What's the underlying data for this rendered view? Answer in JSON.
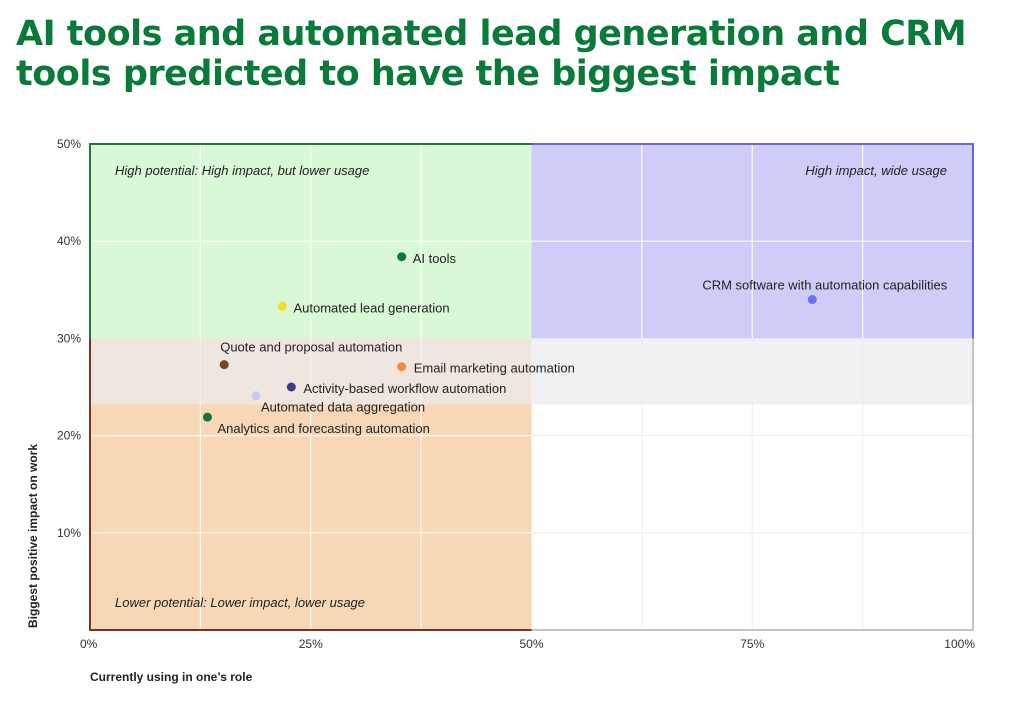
{
  "chart_data": {
    "type": "scatter",
    "title": "AI tools and automated lead generation and CRM tools predicted to have the biggest impact",
    "xlabel": "Currently using in one’s role",
    "ylabel": "Biggest positive impact on work",
    "xlim": [
      0,
      100
    ],
    "ylim": [
      0,
      50
    ],
    "x_ticks": [
      {
        "value": 0,
        "label": "0%"
      },
      {
        "value": 25,
        "label": "25%"
      },
      {
        "value": 50,
        "label": "50%"
      },
      {
        "value": 75,
        "label": "75%"
      },
      {
        "value": 100,
        "label": "100%"
      }
    ],
    "y_ticks": [
      {
        "value": 10,
        "label": "10%"
      },
      {
        "value": 20,
        "label": "20%"
      },
      {
        "value": 30,
        "label": "30%"
      },
      {
        "value": 40,
        "label": "40%"
      },
      {
        "value": 50,
        "label": "50%"
      }
    ],
    "quadrants": [
      {
        "name": "high-potential",
        "label": "High potential: High impact, but lower usage",
        "x": [
          0,
          50
        ],
        "y": [
          30,
          50
        ],
        "fill": "#d9f8d6",
        "border": "#1f7a3a"
      },
      {
        "name": "high-impact-wide-usage",
        "label": "High impact, wide usage",
        "x": [
          50,
          100
        ],
        "y": [
          30,
          50
        ],
        "fill": "#cdcdf8",
        "border": "#6666dd"
      },
      {
        "name": "lower-potential",
        "label": "Lower potential: Lower impact, lower usage",
        "x": [
          0,
          50
        ],
        "y": [
          0,
          30
        ],
        "fill": "#f8d7b6",
        "border": "#6e3b1f"
      }
    ],
    "middle_band": {
      "y": [
        23.2,
        30
      ],
      "fill": "#ececef",
      "opacity": 0.72
    },
    "points": [
      {
        "name": "ai-tools",
        "label": "AI tools",
        "x": 35.3,
        "y": 38.4,
        "color": "#0a7a3b"
      },
      {
        "name": "automated-lead-generation",
        "label": "Automated lead generation",
        "x": 21.8,
        "y": 33.3,
        "color": "#f2dd2a"
      },
      {
        "name": "crm-software",
        "label": "CRM software with automation capabilities",
        "x": 81.8,
        "y": 34.0,
        "color": "#6f6ff0"
      },
      {
        "name": "quote-and-proposal-automation",
        "label": "Quote and proposal automation",
        "x": 15.2,
        "y": 27.3,
        "color": "#7a4522"
      },
      {
        "name": "email-marketing-automation",
        "label": "Email marketing automation",
        "x": 35.3,
        "y": 27.1,
        "color": "#f78a3a"
      },
      {
        "name": "activity-based-workflow-automation",
        "label": "Activity-based workflow automation",
        "x": 22.8,
        "y": 25.0,
        "color": "#3a3a8e"
      },
      {
        "name": "automated-data-aggregation",
        "label": "Automated data aggregation",
        "x": 18.8,
        "y": 24.1,
        "color": "#c8c8f2"
      },
      {
        "name": "analytics-and-forecasting-automation",
        "label": "Analytics and forecasting automation",
        "x": 13.3,
        "y": 21.9,
        "color": "#0a7a3b"
      }
    ]
  }
}
